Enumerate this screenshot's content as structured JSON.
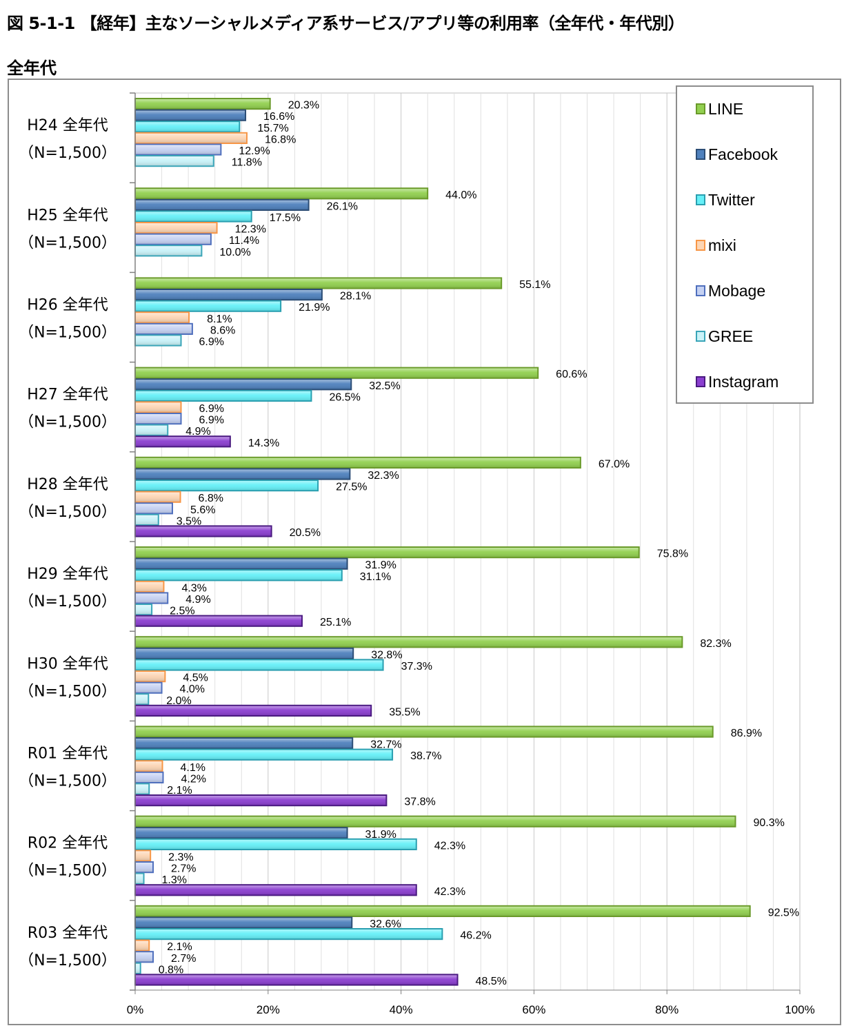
{
  "header": {
    "figure_title": "図 5-1-1 【経年】主なソーシャルメディア系サービス/アプリ等の利用率（全年代・年代別）",
    "section_title": "全年代"
  },
  "chart_data": {
    "type": "bar",
    "orientation": "horizontal",
    "title": "",
    "xlabel": "",
    "ylabel": "",
    "xlim": [
      0,
      100
    ],
    "x_ticks": [
      "0%",
      "20%",
      "40%",
      "60%",
      "80%",
      "100%"
    ],
    "grid": true,
    "legend_position": "top-right",
    "categories": [
      {
        "name": "H24 全年代",
        "n": "（N=1,500）"
      },
      {
        "name": "H25 全年代",
        "n": "（N=1,500）"
      },
      {
        "name": "H26 全年代",
        "n": "（N=1,500）"
      },
      {
        "name": "H27 全年代",
        "n": "（N=1,500）"
      },
      {
        "name": "H28 全年代",
        "n": "（N=1,500）"
      },
      {
        "name": "H29 全年代",
        "n": "（N=1,500）"
      },
      {
        "name": "H30 全年代",
        "n": "（N=1,500）"
      },
      {
        "name": "R01 全年代",
        "n": "（N=1,500）"
      },
      {
        "name": "R02 全年代",
        "n": "（N=1,500）"
      },
      {
        "name": "R03 全年代",
        "n": "（N=1,500）"
      }
    ],
    "series": [
      {
        "name": "LINE",
        "color": "#92d050",
        "border": "#6a9a2a",
        "values": [
          20.3,
          44.0,
          55.1,
          60.6,
          67.0,
          75.8,
          82.3,
          86.9,
          90.3,
          92.5
        ]
      },
      {
        "name": "Facebook",
        "color": "#4f81bd",
        "border": "#2c4d75",
        "values": [
          16.6,
          26.1,
          28.1,
          32.5,
          32.3,
          31.9,
          32.8,
          32.7,
          31.9,
          32.6
        ]
      },
      {
        "name": "Twitter",
        "color": "#66f0f8",
        "border": "#2a9fb0",
        "values": [
          15.7,
          17.5,
          21.9,
          26.5,
          27.5,
          31.1,
          37.3,
          38.7,
          42.3,
          46.2
        ]
      },
      {
        "name": "mixi",
        "color": "#fcd5b4",
        "border": "#f79646",
        "values": [
          16.8,
          12.3,
          8.1,
          6.9,
          6.8,
          4.3,
          4.5,
          4.1,
          2.3,
          2.1
        ]
      },
      {
        "name": "Mobage",
        "color": "#c5d1f2",
        "border": "#4f6fbd",
        "values": [
          12.9,
          11.4,
          8.6,
          6.9,
          5.6,
          4.9,
          4.0,
          4.2,
          2.7,
          2.7
        ]
      },
      {
        "name": "GREE",
        "color": "#c9f2f8",
        "border": "#3aa5b8",
        "values": [
          11.8,
          10.0,
          6.9,
          4.9,
          3.5,
          2.5,
          2.0,
          2.1,
          1.3,
          0.8
        ]
      },
      {
        "name": "Instagram",
        "color": "#8b3fd0",
        "border": "#4a1a80",
        "values": [
          null,
          null,
          null,
          14.3,
          20.5,
          25.1,
          35.5,
          37.8,
          42.3,
          48.5
        ]
      }
    ]
  }
}
